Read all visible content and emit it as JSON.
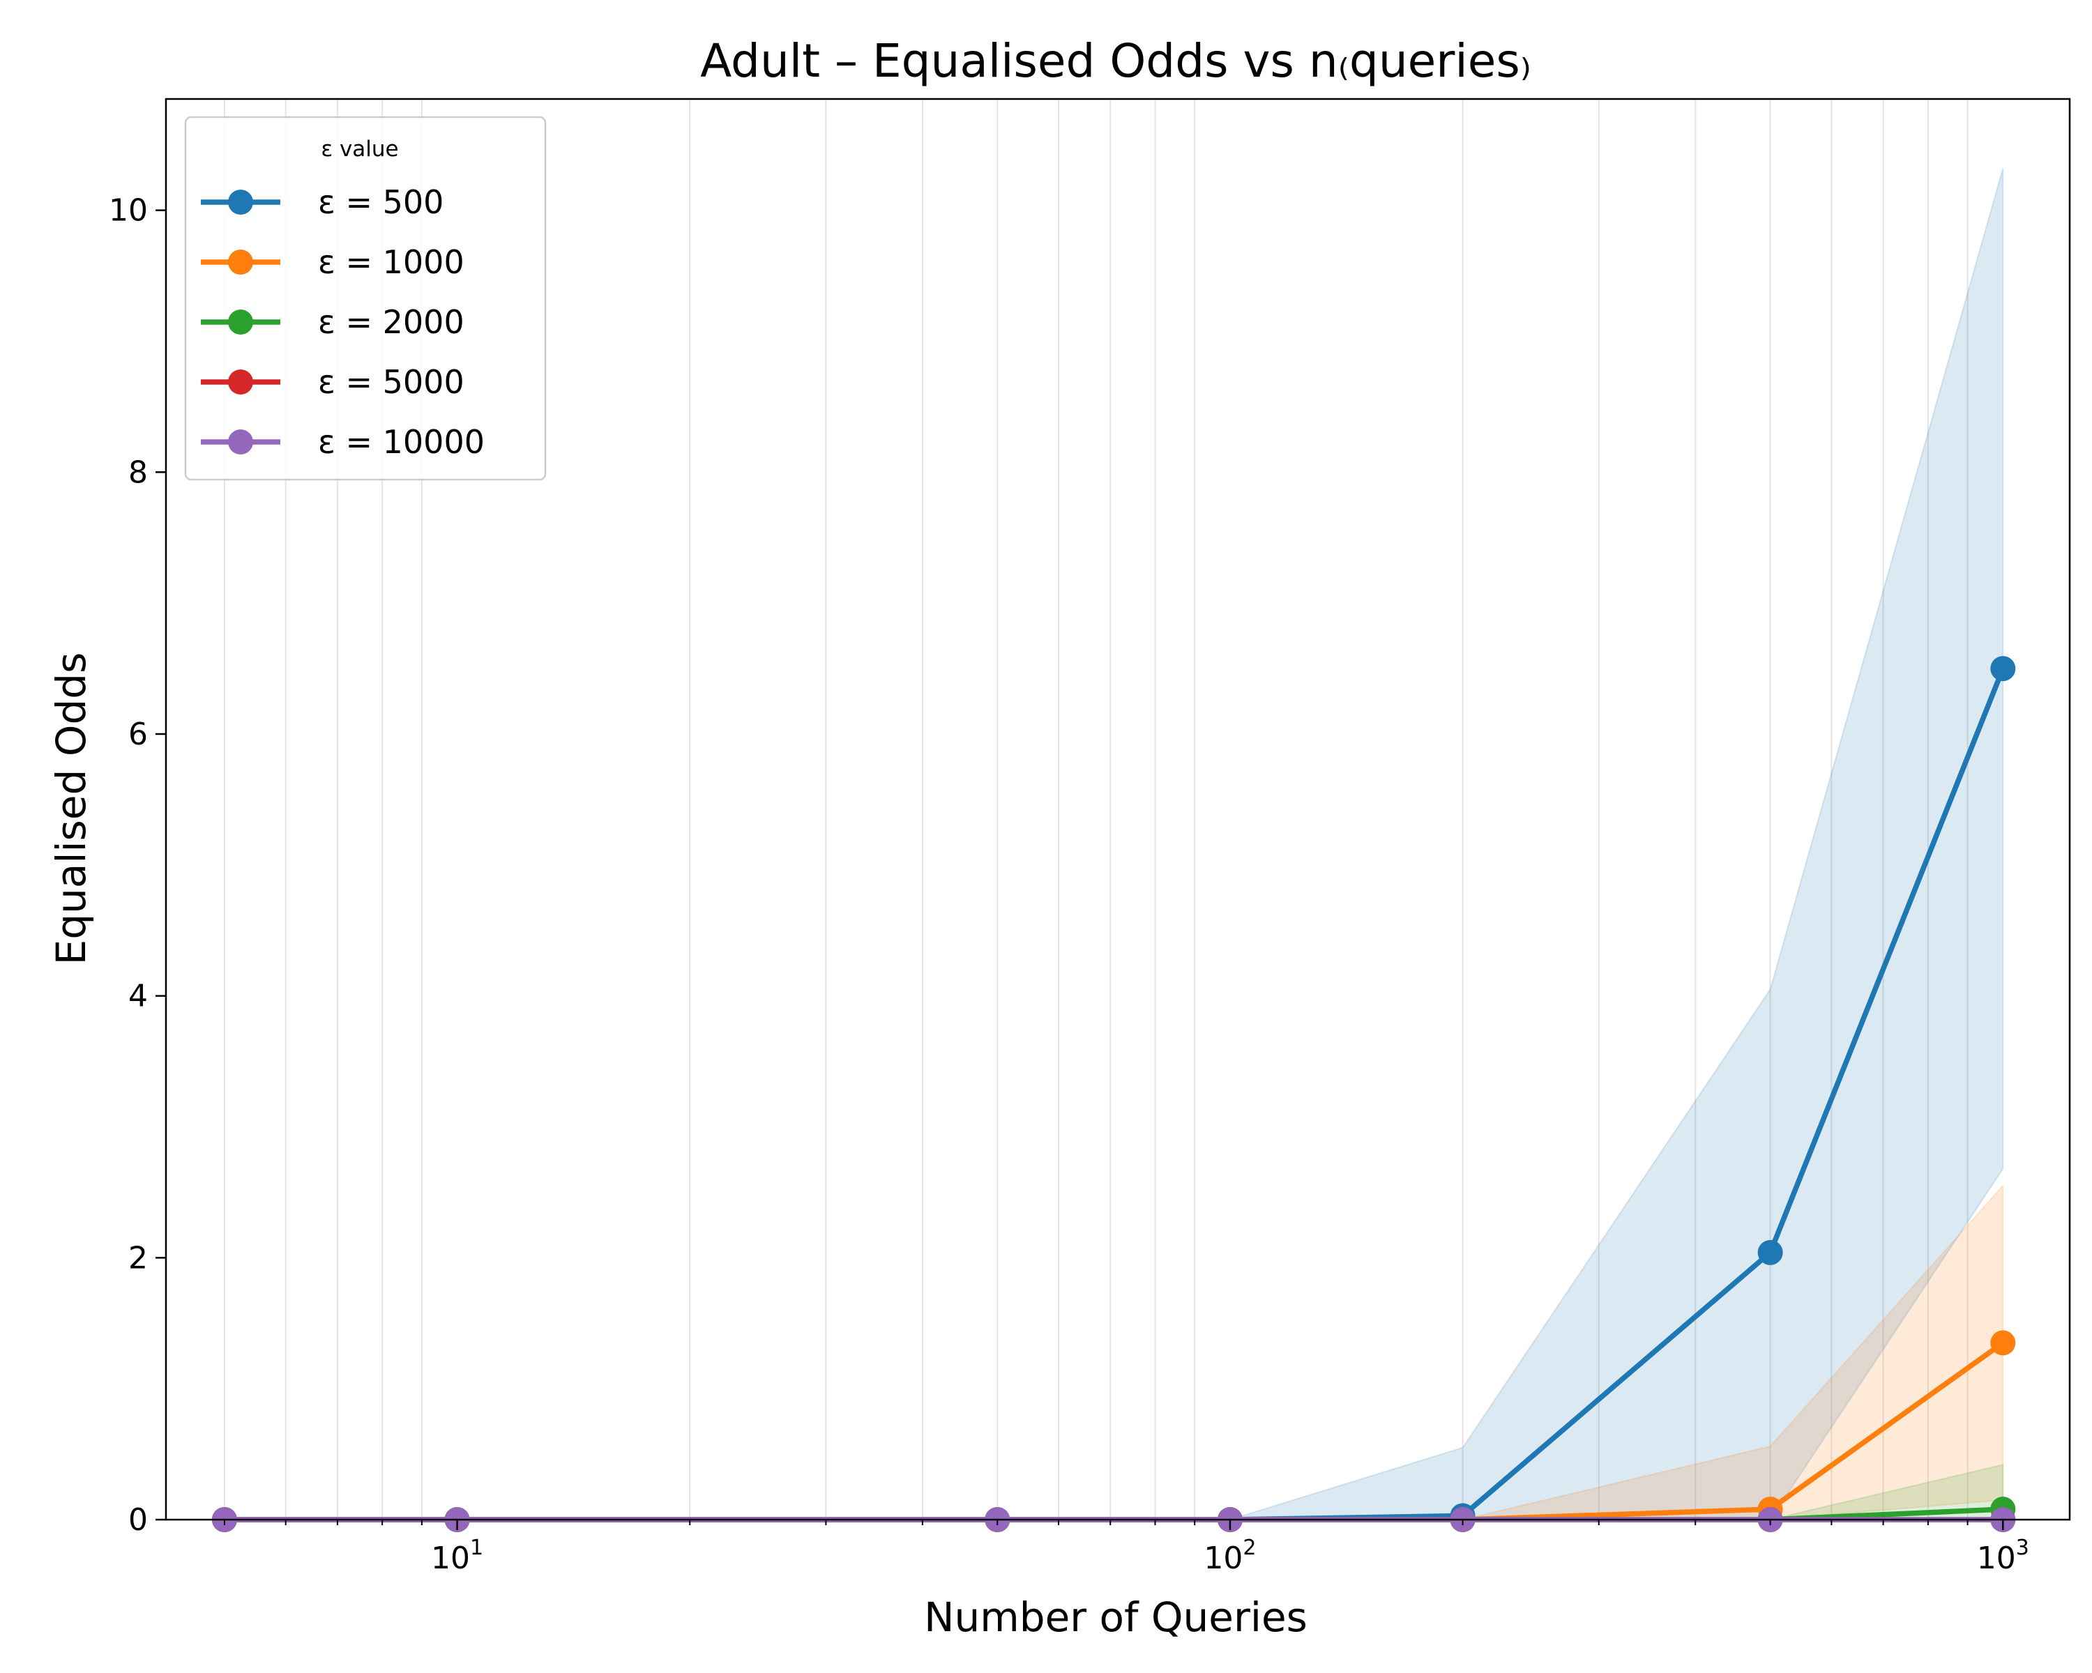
{
  "chart_data": {
    "type": "line",
    "title": "Adult – Equalised Odds vs n₍queries₎",
    "xlabel": "Number of Queries",
    "ylabel": "Equalised Odds",
    "x_scale": "log",
    "x_ticks": [
      10,
      100,
      1000
    ],
    "x_tick_labels": [
      {
        "base": "10",
        "exp": "1"
      },
      {
        "base": "10",
        "exp": "2"
      },
      {
        "base": "10",
        "exp": "3"
      }
    ],
    "y_ticks": [
      0,
      2,
      4,
      6,
      8,
      10
    ],
    "y_tick_labels": [
      "0",
      "2",
      "4",
      "6",
      "8",
      "10"
    ],
    "xlim": [
      4.2,
      1220
    ],
    "ylim": [
      0,
      10.85
    ],
    "grid": "x-minor-vertical",
    "legend": {
      "title": "ε value",
      "placement": "top-left"
    },
    "x": [
      5,
      10,
      50,
      100,
      200,
      500,
      1000
    ],
    "series": [
      {
        "name": "ε = 500",
        "color": "#1f77b4",
        "values": [
          0,
          0,
          0,
          0,
          0.03,
          2.04,
          6.5
        ],
        "band_lower": [
          0,
          0,
          0,
          0,
          0,
          0,
          2.68
        ],
        "band_upper": [
          0,
          0,
          0,
          0,
          0.55,
          4.05,
          10.32
        ]
      },
      {
        "name": "ε = 1000",
        "color": "#ff7f0e",
        "values": [
          0,
          0,
          0,
          0,
          0,
          0.08,
          1.35
        ],
        "band_lower": [
          0,
          0,
          0,
          0,
          0,
          0,
          0.15
        ],
        "band_upper": [
          0,
          0,
          0,
          0,
          0,
          0.56,
          2.55
        ]
      },
      {
        "name": "ε = 2000",
        "color": "#2ca02c",
        "values": [
          0,
          0,
          0,
          0,
          0,
          0,
          0.08
        ],
        "band_lower": [
          0,
          0,
          0,
          0,
          0,
          0,
          0
        ],
        "band_upper": [
          0,
          0,
          0,
          0,
          0,
          0,
          0.42
        ]
      },
      {
        "name": "ε = 5000",
        "color": "#d62728",
        "values": [
          0,
          0,
          0,
          0,
          0,
          0,
          0
        ],
        "band_lower": [
          0,
          0,
          0,
          0,
          0,
          0,
          0
        ],
        "band_upper": [
          0,
          0,
          0,
          0,
          0,
          0,
          0
        ]
      },
      {
        "name": "ε = 10000",
        "color": "#9467bd",
        "values": [
          0,
          0,
          0,
          0,
          0,
          0,
          0
        ],
        "band_lower": [
          0,
          0,
          0,
          0,
          0,
          0,
          0
        ],
        "band_upper": [
          0,
          0,
          0,
          0,
          0,
          0,
          0
        ]
      }
    ]
  }
}
